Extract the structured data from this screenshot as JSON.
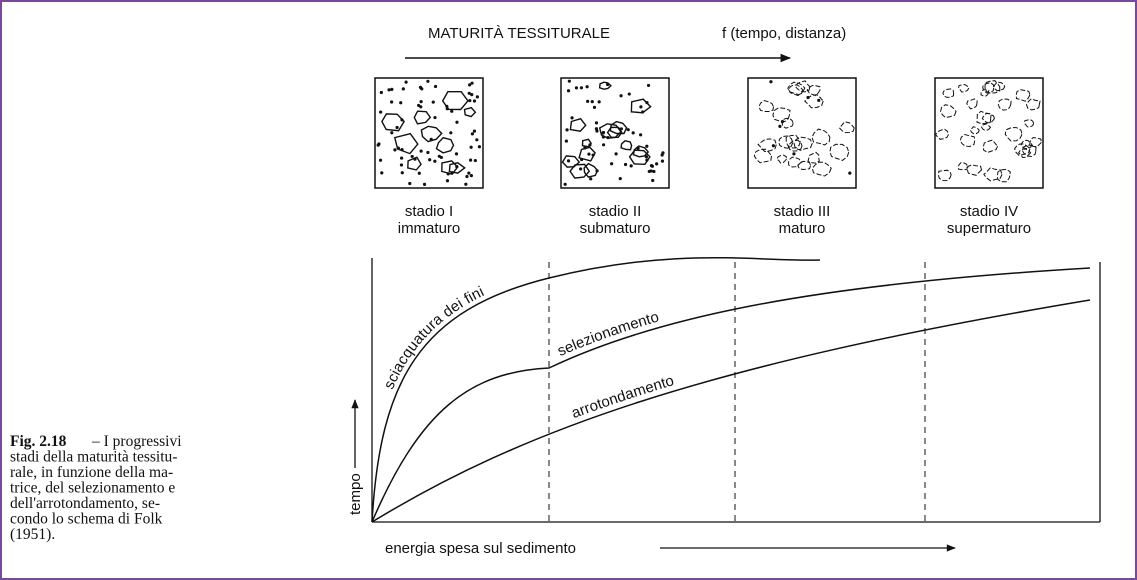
{
  "header": {
    "title": "MATURITÀ TESSITURALE",
    "function": "f (tempo, distanza)"
  },
  "stages": [
    {
      "name": "stadio I",
      "label": "immaturo"
    },
    {
      "name": "stadio II",
      "label": "submaturo"
    },
    {
      "name": "stadio III",
      "label": "maturo"
    },
    {
      "name": "stadio IV",
      "label": "supermaturo"
    }
  ],
  "graph": {
    "curves": [
      "sciacquatura dei fini",
      "selezionamento",
      "arrotondamento"
    ],
    "y_label": "tempo",
    "x_label": "energia spesa sul sedimento"
  },
  "caption": {
    "figure": "Fig. 2.18",
    "lines": [
      "– I progressivi",
      "stadi della maturità tessitu-",
      "rale, in funzione della ma-",
      "trice, del selezionamento e",
      "dell'arrotondamento, se-",
      "condo lo schema di Folk",
      "(1951)."
    ]
  }
}
